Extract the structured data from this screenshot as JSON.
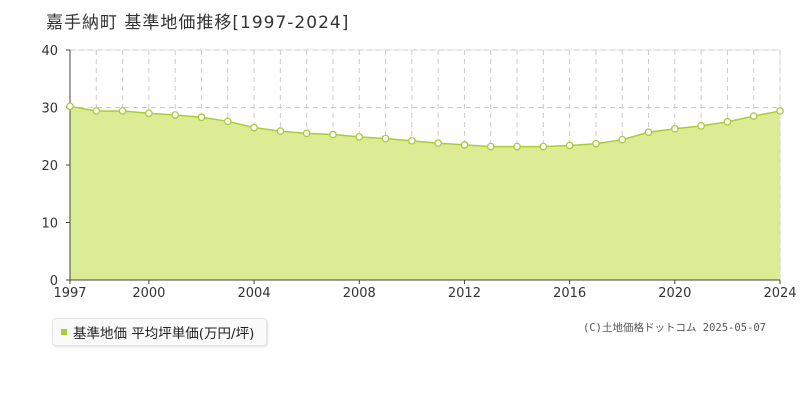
{
  "title": "嘉手納町 基準地価推移[1997-2024]",
  "legend": {
    "label": "基準地価 平均坪単価(万円/坪)"
  },
  "credit": "(C)土地価格ドットコム 2025-05-07",
  "colors": {
    "fill": "#dcec95",
    "line": "#a9cc3a",
    "marker_fill": "#ffffff",
    "swatch": "#a9cc3a",
    "grid": "#cccccc"
  },
  "chart_data": {
    "type": "area",
    "title": "嘉手納町 基準地価推移[1997-2024]",
    "xlabel": "",
    "ylabel": "",
    "xlim": [
      1997,
      2024
    ],
    "ylim": [
      0,
      40
    ],
    "x_ticks": [
      1997,
      2000,
      2004,
      2008,
      2012,
      2016,
      2020,
      2024
    ],
    "y_ticks": [
      0,
      10,
      20,
      30,
      40
    ],
    "grid": true,
    "legend_position": "bottom-left",
    "series": [
      {
        "name": "基準地価 平均坪単価(万円/坪)",
        "x": [
          1997,
          1998,
          1999,
          2000,
          2001,
          2002,
          2003,
          2004,
          2005,
          2006,
          2007,
          2008,
          2009,
          2010,
          2011,
          2012,
          2013,
          2014,
          2015,
          2016,
          2017,
          2018,
          2019,
          2020,
          2021,
          2022,
          2023,
          2024
        ],
        "values": [
          30.2,
          29.4,
          29.4,
          29.0,
          28.7,
          28.3,
          27.6,
          26.5,
          25.9,
          25.5,
          25.3,
          24.9,
          24.6,
          24.2,
          23.8,
          23.5,
          23.2,
          23.2,
          23.2,
          23.4,
          23.7,
          24.4,
          25.7,
          26.3,
          26.8,
          27.5,
          28.5,
          29.4
        ]
      }
    ]
  }
}
